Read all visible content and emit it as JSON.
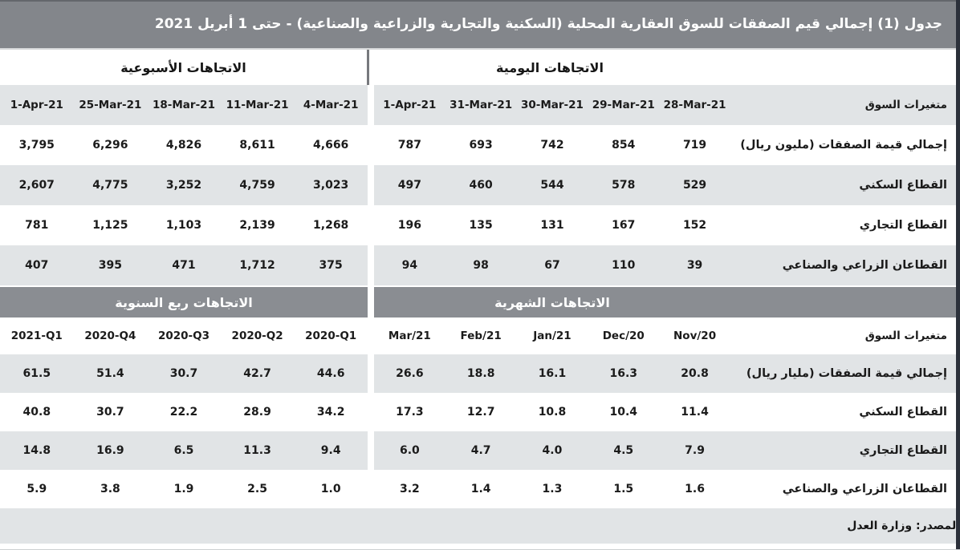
{
  "page": {
    "title": "جدول (1) إجمالي قيم الصفقات للسوق العقارية المحلية (السكنية والتجارية والزراعية والصناعية) - حتى 1 أبريل 2021",
    "source_note": "المصدر: وزارة العدل"
  },
  "colors": {
    "title_bar_gray": "#83868b",
    "section_bar_gray": "#8a8d92",
    "stripe_gray": "#e1e4e6",
    "text_dark": "#1b1b1b",
    "title_text_white": "#ffffff",
    "right_border_dark": "#2b303a"
  },
  "s1": {
    "left_title": "الاتجاهات الأسبوعية",
    "right_title": "الاتجاهات اليومية",
    "label_header": "متغيرات السوق",
    "left_cols": [
      "1-Apr-21",
      "25-Mar-21",
      "18-Mar-21",
      "11-Mar-21",
      "4-Mar-21"
    ],
    "right_cols": [
      "1-Apr-21",
      "31-Mar-21",
      "30-Mar-21",
      "29-Mar-21",
      "28-Mar-21"
    ],
    "rows": [
      {
        "label": "إجمالي قيمة الصفقات (مليون ريال)",
        "left": [
          "3,795",
          "6,296",
          "4,826",
          "8,611",
          "4,666"
        ],
        "right": [
          "787",
          "693",
          "742",
          "854",
          "719"
        ]
      },
      {
        "label": "القطاع السكني",
        "left": [
          "2,607",
          "4,775",
          "3,252",
          "4,759",
          "3,023"
        ],
        "right": [
          "497",
          "460",
          "544",
          "578",
          "529"
        ]
      },
      {
        "label": "القطاع التجاري",
        "left": [
          "781",
          "1,125",
          "1,103",
          "2,139",
          "1,268"
        ],
        "right": [
          "196",
          "135",
          "131",
          "167",
          "152"
        ]
      },
      {
        "label": "القطاعان الزراعي والصناعي",
        "left": [
          "407",
          "395",
          "471",
          "1,712",
          "375"
        ],
        "right": [
          "94",
          "98",
          "67",
          "110",
          "39"
        ]
      }
    ]
  },
  "s2": {
    "left_title": "الاتجاهات ربع السنوية",
    "right_title": "الاتجاهات الشهرية",
    "label_header": "متغيرات السوق",
    "left_cols": [
      "2021-Q1",
      "2020-Q4",
      "2020-Q3",
      "2020-Q2",
      "2020-Q1"
    ],
    "right_cols": [
      "Mar/21",
      "Feb/21",
      "Jan/21",
      "Dec/20",
      "Nov/20"
    ],
    "rows": [
      {
        "label": "إجمالي قيمة الصفقات (مليار ريال)",
        "left": [
          "61.5",
          "51.4",
          "30.7",
          "42.7",
          "44.6"
        ],
        "right": [
          "26.6",
          "18.8",
          "16.1",
          "16.3",
          "20.8"
        ]
      },
      {
        "label": "القطاع السكني",
        "left": [
          "40.8",
          "30.7",
          "22.2",
          "28.9",
          "34.2"
        ],
        "right": [
          "17.3",
          "12.7",
          "10.8",
          "10.4",
          "11.4"
        ]
      },
      {
        "label": "القطاع التجاري",
        "left": [
          "14.8",
          "16.9",
          "6.5",
          "11.3",
          "9.4"
        ],
        "right": [
          "6.0",
          "4.7",
          "4.0",
          "4.5",
          "7.9"
        ]
      },
      {
        "label": "القطاعان الزراعي والصناعي",
        "left": [
          "5.9",
          "3.8",
          "1.9",
          "2.5",
          "1.0"
        ],
        "right": [
          "3.2",
          "1.4",
          "1.3",
          "1.5",
          "1.6"
        ]
      }
    ]
  },
  "chart_data": [
    {
      "type": "table",
      "title": "الاتجاهات الأسبوعية",
      "columns": [
        "1-Apr-21",
        "25-Mar-21",
        "18-Mar-21",
        "11-Mar-21",
        "4-Mar-21"
      ],
      "row_labels": [
        "إجمالي قيمة الصفقات (مليون ريال)",
        "القطاع السكني",
        "القطاع التجاري",
        "القطاعان الزراعي والصناعي"
      ],
      "values": [
        [
          3795,
          6296,
          4826,
          8611,
          4666
        ],
        [
          2607,
          4775,
          3252,
          4759,
          3023
        ],
        [
          781,
          1125,
          1103,
          2139,
          1268
        ],
        [
          407,
          395,
          471,
          1712,
          375
        ]
      ]
    },
    {
      "type": "table",
      "title": "الاتجاهات اليومية",
      "columns": [
        "1-Apr-21",
        "31-Mar-21",
        "30-Mar-21",
        "29-Mar-21",
        "28-Mar-21"
      ],
      "row_labels": [
        "إجمالي قيمة الصفقات (مليون ريال)",
        "القطاع السكني",
        "القطاع التجاري",
        "القطاعان الزراعي والصناعي"
      ],
      "values": [
        [
          787,
          693,
          742,
          854,
          719
        ],
        [
          497,
          460,
          544,
          578,
          529
        ],
        [
          196,
          135,
          131,
          167,
          152
        ],
        [
          94,
          98,
          67,
          110,
          39
        ]
      ]
    },
    {
      "type": "table",
      "title": "الاتجاهات ربع السنوية",
      "columns": [
        "2021-Q1",
        "2020-Q4",
        "2020-Q3",
        "2020-Q2",
        "2020-Q1"
      ],
      "row_labels": [
        "إجمالي قيمة الصفقات (مليار ريال)",
        "القطاع السكني",
        "القطاع التجاري",
        "القطاعان الزراعي والصناعي"
      ],
      "values": [
        [
          61.5,
          51.4,
          30.7,
          42.7,
          44.6
        ],
        [
          40.8,
          30.7,
          22.2,
          28.9,
          34.2
        ],
        [
          14.8,
          16.9,
          6.5,
          11.3,
          9.4
        ],
        [
          5.9,
          3.8,
          1.9,
          2.5,
          1.0
        ]
      ]
    },
    {
      "type": "table",
      "title": "الاتجاهات الشهرية",
      "columns": [
        "Mar/21",
        "Feb/21",
        "Jan/21",
        "Dec/20",
        "Nov/20"
      ],
      "row_labels": [
        "إجمالي قيمة الصفقات (مليار ريال)",
        "القطاع السكني",
        "القطاع التجاري",
        "القطاعان الزراعي والصناعي"
      ],
      "values": [
        [
          26.6,
          18.8,
          16.1,
          16.3,
          20.8
        ],
        [
          17.3,
          12.7,
          10.8,
          10.4,
          11.4
        ],
        [
          6.0,
          4.7,
          4.0,
          4.5,
          7.9
        ],
        [
          3.2,
          1.4,
          1.3,
          1.5,
          1.6
        ]
      ]
    }
  ]
}
